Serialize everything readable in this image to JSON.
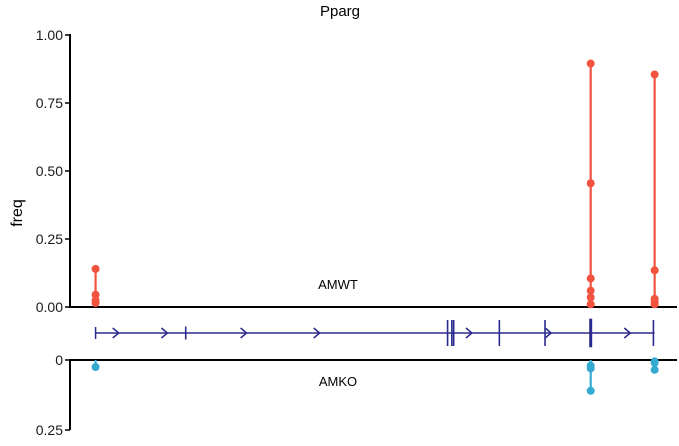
{
  "chart_data": {
    "type": "lollipop",
    "title": "Pparg",
    "ylabel": "freq",
    "colors": {
      "top": "#f2533f",
      "bottom": "#35aad1",
      "gene": "#2a2a8e",
      "axis": "#000000"
    },
    "top_panel": {
      "label": "AMWT",
      "ylim": [
        0,
        1.0
      ],
      "ticks": [
        "1.00",
        "0.75",
        "0.50",
        "0.25",
        "0.00"
      ],
      "tick_values": [
        1.0,
        0.75,
        0.5,
        0.25,
        0.0
      ],
      "groups": [
        {
          "position": 0.042,
          "values": [
            0.14,
            0.045,
            0.025,
            0.015
          ]
        },
        {
          "position": 0.855,
          "values": [
            0.895,
            0.455,
            0.105,
            0.06,
            0.035,
            0.01
          ]
        },
        {
          "position": 0.96,
          "values": [
            0.855,
            0.135,
            0.03,
            0.02,
            0.01
          ]
        }
      ]
    },
    "bottom_panel": {
      "label": "AMKO",
      "ylim": [
        0,
        0.25
      ],
      "ticks": [
        "0",
        "0.25"
      ],
      "tick_values": [
        0,
        0.25
      ],
      "groups": [
        {
          "position": 0.042,
          "values": [
            0.025
          ]
        },
        {
          "position": 0.855,
          "values": [
            0.02,
            0.03,
            0.11
          ]
        },
        {
          "position": 0.96,
          "values": [
            0.005,
            0.01,
            0.035
          ]
        }
      ]
    },
    "gene_track": {
      "span": [
        0.042,
        0.96
      ],
      "arrow_positions": [
        0.08,
        0.16,
        0.29,
        0.41,
        0.66,
        0.79,
        0.92
      ],
      "exon_positions": [
        0.19,
        0.62,
        0.627,
        0.63,
        0.705,
        0.78,
        0.855,
        0.958
      ],
      "exon_heights": [
        0.5,
        1,
        1,
        1,
        1,
        1,
        1.1,
        1
      ]
    }
  }
}
